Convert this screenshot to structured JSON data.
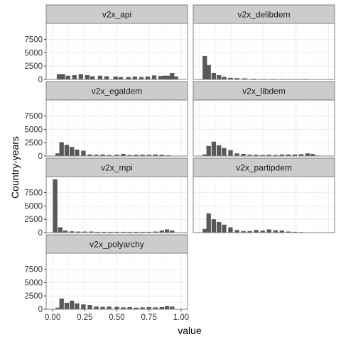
{
  "chart_data": {
    "type": "bar",
    "chart_kind": "faceted histogram",
    "xlabel": "value",
    "ylabel": "Country-years",
    "xlim": [
      -0.05,
      1.05
    ],
    "ylim": [
      0,
      10500
    ],
    "x_ticks": [
      0.0,
      0.25,
      0.5,
      0.75,
      1.0
    ],
    "x_tick_labels": [
      "0.00",
      "0.25",
      "0.50",
      "0.75",
      "1.00"
    ],
    "y_ticks": [
      0,
      2500,
      5000,
      7500
    ],
    "y_tick_labels": [
      "0",
      "2500",
      "5000",
      "7500"
    ],
    "grid": true,
    "bar_color": "#595959",
    "strip_color": "#cccccc",
    "panel_border_color": "#7f7f7f",
    "grid_color": "#ebebeb",
    "facets": [
      {
        "name": "v2x_api",
        "bins": [
          [
            0.05,
            1000
          ],
          [
            0.08,
            1000
          ],
          [
            0.12,
            700
          ],
          [
            0.17,
            800
          ],
          [
            0.22,
            1000
          ],
          [
            0.27,
            800
          ],
          [
            0.31,
            600
          ],
          [
            0.37,
            700
          ],
          [
            0.42,
            600
          ],
          [
            0.49,
            550
          ],
          [
            0.53,
            450
          ],
          [
            0.59,
            450
          ],
          [
            0.64,
            550
          ],
          [
            0.69,
            450
          ],
          [
            0.74,
            550
          ],
          [
            0.79,
            750
          ],
          [
            0.84,
            650
          ],
          [
            0.87,
            700
          ],
          [
            0.9,
            700
          ],
          [
            0.93,
            1200
          ],
          [
            0.96,
            550
          ]
        ]
      },
      {
        "name": "v2x_delibdem",
        "bins": [
          [
            0.04,
            4400
          ],
          [
            0.07,
            2700
          ],
          [
            0.11,
            1200
          ],
          [
            0.15,
            800
          ],
          [
            0.19,
            500
          ],
          [
            0.24,
            300
          ],
          [
            0.29,
            250
          ],
          [
            0.35,
            200
          ],
          [
            0.42,
            150
          ],
          [
            0.5,
            100
          ],
          [
            0.57,
            100
          ],
          [
            0.64,
            80
          ],
          [
            0.7,
            80
          ],
          [
            0.76,
            80
          ],
          [
            0.82,
            100
          ],
          [
            0.88,
            50
          ]
        ]
      },
      {
        "name": "v2x_egaldem",
        "bins": [
          [
            0.04,
            500
          ],
          [
            0.07,
            2600
          ],
          [
            0.11,
            2100
          ],
          [
            0.15,
            1700
          ],
          [
            0.19,
            1200
          ],
          [
            0.24,
            1000
          ],
          [
            0.29,
            300
          ],
          [
            0.34,
            250
          ],
          [
            0.39,
            300
          ],
          [
            0.44,
            200
          ],
          [
            0.5,
            250
          ],
          [
            0.55,
            400
          ],
          [
            0.6,
            200
          ],
          [
            0.65,
            250
          ],
          [
            0.7,
            250
          ],
          [
            0.75,
            250
          ],
          [
            0.8,
            300
          ],
          [
            0.85,
            250
          ],
          [
            0.9,
            150
          ]
        ]
      },
      {
        "name": "v2x_libdem",
        "bins": [
          [
            0.04,
            300
          ],
          [
            0.07,
            1900
          ],
          [
            0.11,
            2700
          ],
          [
            0.15,
            2000
          ],
          [
            0.19,
            1500
          ],
          [
            0.24,
            1100
          ],
          [
            0.29,
            500
          ],
          [
            0.34,
            400
          ],
          [
            0.39,
            250
          ],
          [
            0.44,
            250
          ],
          [
            0.49,
            200
          ],
          [
            0.54,
            250
          ],
          [
            0.59,
            200
          ],
          [
            0.64,
            300
          ],
          [
            0.69,
            300
          ],
          [
            0.74,
            300
          ],
          [
            0.79,
            350
          ],
          [
            0.84,
            500
          ],
          [
            0.88,
            400
          ],
          [
            0.92,
            100
          ]
        ]
      },
      {
        "name": "v2x_mpi",
        "bins": [
          [
            0.02,
            10000
          ],
          [
            0.06,
            1000
          ],
          [
            0.1,
            400
          ],
          [
            0.15,
            250
          ],
          [
            0.2,
            200
          ],
          [
            0.25,
            200
          ],
          [
            0.3,
            200
          ],
          [
            0.35,
            150
          ],
          [
            0.4,
            150
          ],
          [
            0.45,
            150
          ],
          [
            0.5,
            150
          ],
          [
            0.55,
            150
          ],
          [
            0.6,
            150
          ],
          [
            0.65,
            150
          ],
          [
            0.7,
            150
          ],
          [
            0.75,
            150
          ],
          [
            0.8,
            200
          ],
          [
            0.85,
            400
          ],
          [
            0.89,
            600
          ],
          [
            0.93,
            400
          ]
        ]
      },
      {
        "name": "v2x_partipdem",
        "bins": [
          [
            0.04,
            700
          ],
          [
            0.07,
            3600
          ],
          [
            0.11,
            2500
          ],
          [
            0.15,
            2000
          ],
          [
            0.19,
            1500
          ],
          [
            0.24,
            1000
          ],
          [
            0.29,
            500
          ],
          [
            0.34,
            300
          ],
          [
            0.39,
            300
          ],
          [
            0.44,
            500
          ],
          [
            0.49,
            400
          ],
          [
            0.54,
            600
          ],
          [
            0.59,
            450
          ],
          [
            0.64,
            400
          ],
          [
            0.69,
            200
          ],
          [
            0.74,
            150
          ],
          [
            0.79,
            100
          ]
        ]
      },
      {
        "name": "v2x_polyarchy",
        "bins": [
          [
            0.04,
            300
          ],
          [
            0.07,
            2000
          ],
          [
            0.11,
            1200
          ],
          [
            0.15,
            1600
          ],
          [
            0.19,
            1100
          ],
          [
            0.24,
            900
          ],
          [
            0.29,
            800
          ],
          [
            0.34,
            500
          ],
          [
            0.39,
            450
          ],
          [
            0.44,
            500
          ],
          [
            0.5,
            450
          ],
          [
            0.55,
            350
          ],
          [
            0.6,
            400
          ],
          [
            0.65,
            300
          ],
          [
            0.7,
            350
          ],
          [
            0.75,
            400
          ],
          [
            0.8,
            350
          ],
          [
            0.85,
            400
          ],
          [
            0.89,
            600
          ],
          [
            0.93,
            500
          ]
        ]
      }
    ]
  }
}
